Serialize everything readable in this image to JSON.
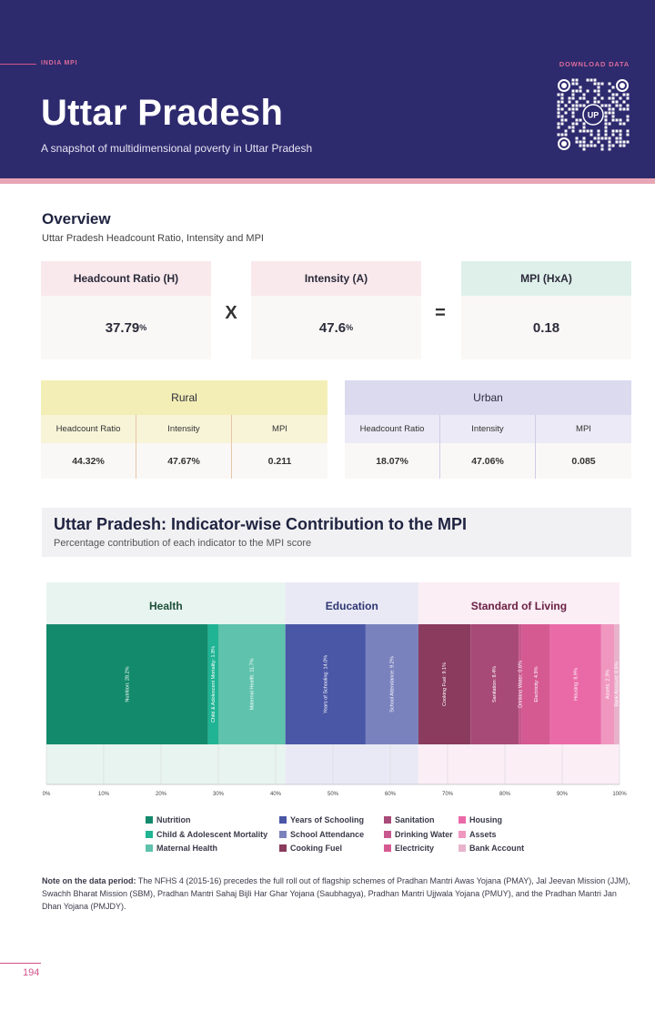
{
  "header": {
    "brand": "INDIA MPI",
    "download": "DOWNLOAD DATA",
    "title": "Uttar Pradesh",
    "subtitle": "A snapshot of multidimensional poverty in Uttar Pradesh",
    "qr_label": "UP"
  },
  "overview": {
    "title": "Overview",
    "subtitle": "Uttar Pradesh Headcount Ratio, Intensity and MPI",
    "kpis": [
      {
        "label": "Headcount Ratio (H)",
        "value": "37.79",
        "unit": "%"
      },
      {
        "label": "Intensity (A)",
        "value": "47.6",
        "unit": "%"
      },
      {
        "label": "MPI (HxA)",
        "value": "0.18",
        "unit": ""
      }
    ],
    "op_times": "X",
    "op_equals": "=",
    "rural": {
      "label": "Rural",
      "cols": [
        "Headcount Ratio",
        "Intensity",
        "MPI"
      ],
      "values": [
        "44.32%",
        "47.67%",
        "0.211"
      ]
    },
    "urban": {
      "label": "Urban",
      "cols": [
        "Headcount Ratio",
        "Intensity",
        "MPI"
      ],
      "values": [
        "18.07%",
        "47.06%",
        "0.085"
      ]
    }
  },
  "contribution": {
    "title": "Uttar Pradesh: Indicator-wise Contribution to the MPI",
    "subtitle": "Percentage contribution of each indicator to the MPI score"
  },
  "chart_data": {
    "type": "bar",
    "orientation": "horizontal-stacked",
    "groups": [
      {
        "name": "Health",
        "start": 0,
        "end": 41.7
      },
      {
        "name": "Education",
        "start": 41.7,
        "end": 64.9
      },
      {
        "name": "Standard of Living",
        "start": 64.9,
        "end": 100
      }
    ],
    "series": [
      {
        "name": "Nutrition",
        "label": "Nutrition: 28.2%",
        "value": 28.2,
        "color": "#138a6b"
      },
      {
        "name": "Child & Adolescent Mortality",
        "label": "Child & Adolescent Mortality: 1.8%",
        "value": 1.8,
        "color": "#20b394"
      },
      {
        "name": "Maternal Health",
        "label": "Maternal Health: 11.7%",
        "value": 11.7,
        "color": "#5fc2ad"
      },
      {
        "name": "Years of Schooling",
        "label": "Years of Schooling: 14.0%",
        "value": 14.0,
        "color": "#4a56a6"
      },
      {
        "name": "School Attendance",
        "label": "School Attendance: 9.2%",
        "value": 9.2,
        "color": "#7a82be"
      },
      {
        "name": "Cooking Fuel",
        "label": "Cooking Fuel: 9.1%",
        "value": 9.1,
        "color": "#8a3b5e"
      },
      {
        "name": "Sanitation",
        "label": "Sanitation: 8.4%",
        "value": 8.4,
        "color": "#a84a77"
      },
      {
        "name": "Drinking Water",
        "label": "Drinking Water: 0.6%",
        "value": 0.6,
        "color": "#c8578e"
      },
      {
        "name": "Electricity",
        "label": "Electricity: 4.9%",
        "value": 4.9,
        "color": "#d65a92"
      },
      {
        "name": "Housing",
        "label": "Housing: 8.9%",
        "value": 8.9,
        "color": "#ea6aa8"
      },
      {
        "name": "Assets",
        "label": "Assets: 2.3%",
        "value": 2.3,
        "color": "#f097c0"
      },
      {
        "name": "Bank Account",
        "label": "Bank Account: 0.9%",
        "value": 0.9,
        "color": "#e8b4cc"
      }
    ],
    "xticks": [
      "0%",
      "10%",
      "20%",
      "30%",
      "40%",
      "50%",
      "60%",
      "70%",
      "80%",
      "90%",
      "100%"
    ],
    "xlim": [
      0,
      100
    ],
    "legend": "bottom"
  },
  "legend_columns": [
    [
      "Nutrition",
      "Child & Adolescent Mortality",
      "Maternal Health"
    ],
    [
      "Years of Schooling",
      "School Attendance",
      "Cooking Fuel"
    ],
    [
      "Sanitation",
      "Drinking Water",
      "Electricity"
    ],
    [
      "Housing",
      "Assets",
      "Bank Account"
    ]
  ],
  "note": {
    "label": "Note on the data period:",
    "text": " The NFHS 4 (2015-16) precedes the full roll out of flagship schemes of Pradhan Mantri Awas Yojana (PMAY), Jal Jeevan Mission (JJM), Swachh Bharat Mission (SBM), Pradhan Mantri Sahaj Bijli Har Ghar Yojana (Saubhagya), Pradhan Mantri Ujjwala Yojana (PMUY), and the Pradhan Mantri Jan Dhan Yojana (PMJDY)."
  },
  "page_number": "194",
  "colors": {
    "header_bg": "#2e2a6e",
    "accent": "#d4548a",
    "health_bg": "#e8f4ef",
    "education_bg": "#e9e9f5",
    "living_bg": "#fbeef4",
    "rural_head": "#f3eeb5",
    "urban_head": "#dcdaef"
  }
}
